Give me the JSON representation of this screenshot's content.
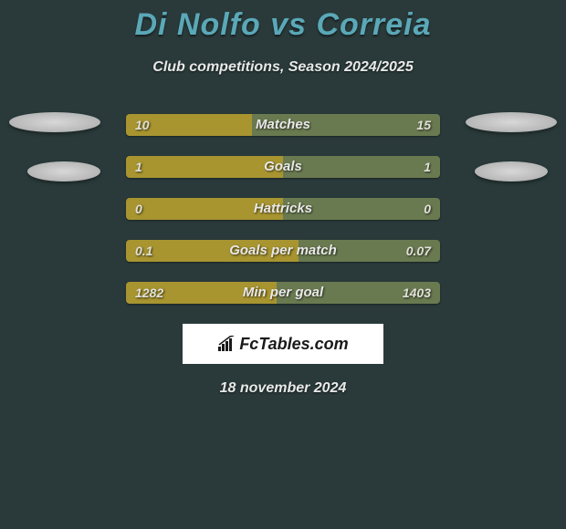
{
  "header": {
    "title": "Di Nolfo vs Correia",
    "subtitle": "Club competitions, Season 2024/2025",
    "title_color": "#5aa8b8"
  },
  "stats": [
    {
      "label": "Matches",
      "left_value": "10",
      "right_value": "15",
      "left_pct": 40
    },
    {
      "label": "Goals",
      "left_value": "1",
      "right_value": "1",
      "left_pct": 50
    },
    {
      "label": "Hattricks",
      "left_value": "0",
      "right_value": "0",
      "left_pct": 50
    },
    {
      "label": "Goals per match",
      "left_value": "0.1",
      "right_value": "0.07",
      "left_pct": 55
    },
    {
      "label": "Min per goal",
      "left_value": "1282",
      "right_value": "1403",
      "left_pct": 48
    }
  ],
  "colors": {
    "bar_left": "#a89530",
    "bar_right": "#6a7a50",
    "background": "#2a3a3a"
  },
  "footer": {
    "logo_text": "FcTables.com",
    "date": "18 november 2024"
  }
}
